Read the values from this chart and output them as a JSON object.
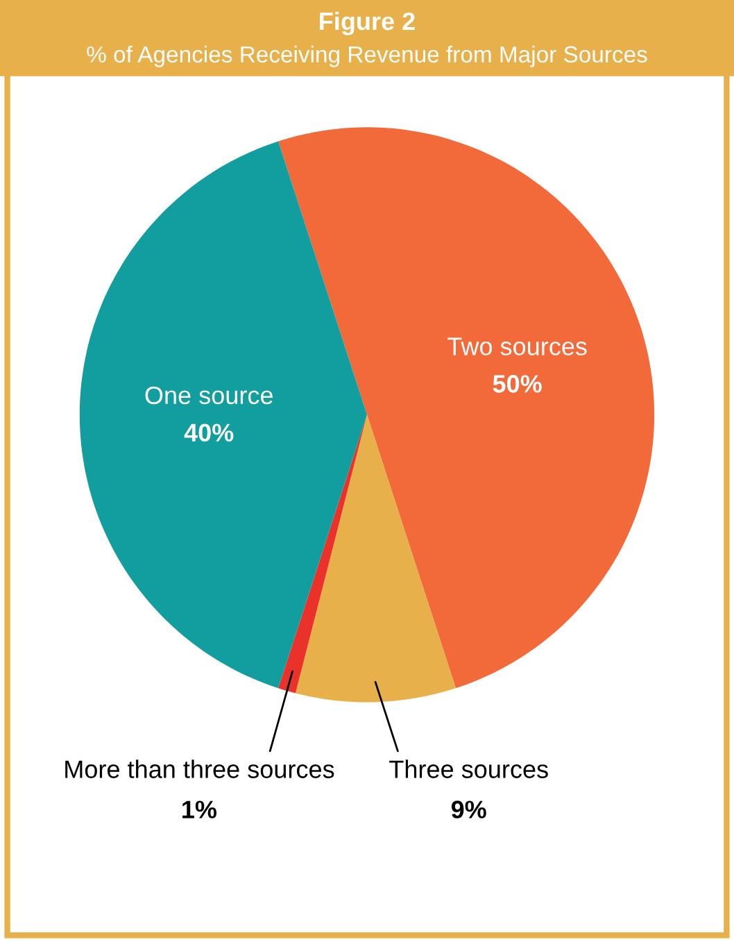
{
  "chart_data": {
    "type": "pie",
    "title": "Figure 2",
    "subtitle": "% of Agencies Receiving Revenue from Major Sources",
    "categories": [
      "Two sources",
      "Three sources",
      "More than three sources",
      "One source"
    ],
    "values": [
      50,
      9,
      1,
      40
    ],
    "colors": [
      "#f26a3a",
      "#e8b04a",
      "#e8322a",
      "#129e9e"
    ],
    "value_labels": [
      "50%",
      "9%",
      "1%",
      "40%"
    ],
    "legend": false
  }
}
